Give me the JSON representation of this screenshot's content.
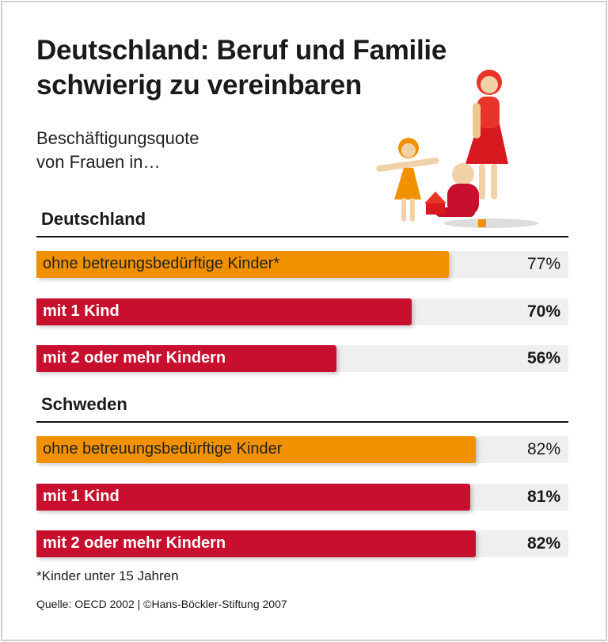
{
  "title_line1": "Deutschland: Beruf und Familie",
  "title_line2": "schwierig zu vereinbaren",
  "subtitle_line1": "Beschäftigungsquote",
  "subtitle_line2": "von Frauen in…",
  "footnote": "*Kinder unter 15 Jahren",
  "source": "Quelle: OECD 2002 | ©Hans-Böckler-Stiftung 2007",
  "colors": {
    "orange": "#f29100",
    "red": "#c8102e",
    "track": "#efefef"
  },
  "chart_data": {
    "type": "bar",
    "orientation": "horizontal",
    "unit": "%",
    "xlim": [
      0,
      100
    ],
    "groups": [
      {
        "name": "Deutschland",
        "bars": [
          {
            "label": "ohne betreungsbedürftige Kinder*",
            "value": 77,
            "display": "77%",
            "color": "#f29100",
            "bold": false
          },
          {
            "label": "mit 1 Kind",
            "value": 70,
            "display": "70%",
            "color": "#c8102e",
            "bold": true
          },
          {
            "label": "mit 2 oder mehr Kindern",
            "value": 56,
            "display": "56%",
            "color": "#c8102e",
            "bold": true
          }
        ]
      },
      {
        "name": "Schweden",
        "bars": [
          {
            "label": "ohne betreuungsbedürftige Kinder",
            "value": 82,
            "display": "82%",
            "color": "#f29100",
            "bold": false
          },
          {
            "label": "mit 1 Kind",
            "value": 81,
            "display": "81%",
            "color": "#c8102e",
            "bold": true
          },
          {
            "label": "mit 2 oder mehr Kindern",
            "value": 82,
            "display": "82%",
            "color": "#c8102e",
            "bold": true
          }
        ]
      }
    ]
  }
}
